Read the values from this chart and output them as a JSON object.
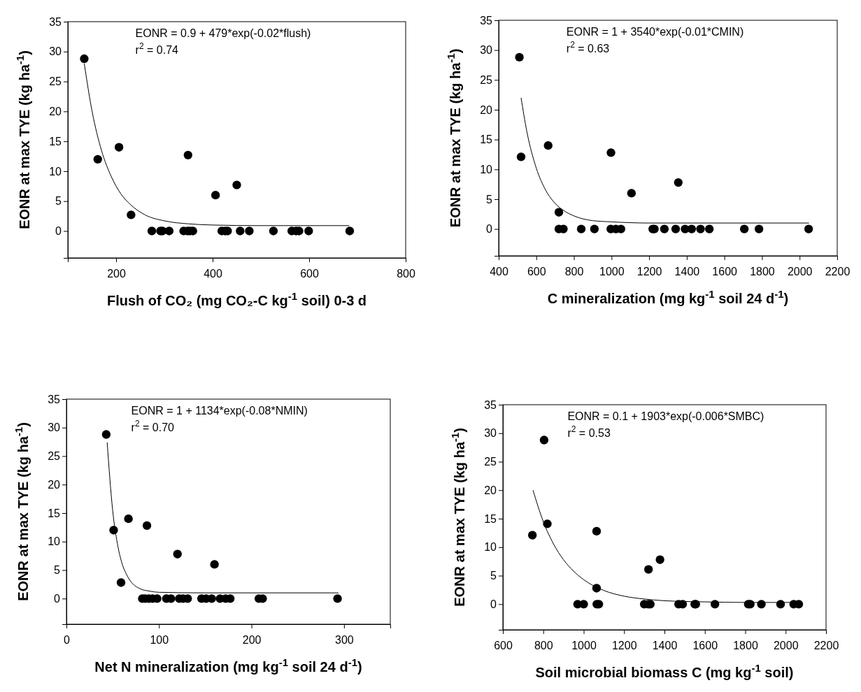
{
  "chart_data": [
    {
      "type": "scatter",
      "xlabel": "Flush of CO₂ (mg CO₂-C kg$^{-1}$ soil) 0-3 d",
      "ylabel": "EONR at max TYE (kg ha$^{-1}$)",
      "annotations": [
        "EONR = 0.9 + 479*exp(-0.02*flush)",
        "r$^{2}$ = 0.74"
      ],
      "xlim": [
        100,
        800
      ],
      "xticks": [
        200,
        400,
        600,
        800
      ],
      "ylim": [
        -4.5,
        35
      ],
      "yticks": [
        0,
        5,
        10,
        15,
        20,
        25,
        30,
        35
      ],
      "grid": false,
      "series": [
        {
          "marker": "circle",
          "color": "#000000",
          "x": [
            134,
            162,
            206,
            231,
            349,
            406,
            450,
            274,
            292,
            296,
            310,
            340,
            348,
            353,
            359,
            419,
            426,
            431,
            457,
            476,
            526,
            564,
            573,
            579,
            599,
            684
          ],
          "values": [
            28.8,
            12,
            14,
            2.7,
            12.7,
            6,
            7.7,
            0,
            0,
            0,
            0,
            0,
            0,
            0,
            0,
            0,
            0,
            0,
            0,
            0,
            0,
            0,
            0,
            0,
            0,
            0
          ]
        },
        {
          "type": "line",
          "color": "#000000",
          "x": [
            134,
            150,
            170,
            190,
            210,
            230,
            260,
            300,
            350,
            400,
            500,
            683
          ],
          "values": [
            28,
            20.1,
            13.4,
            9.1,
            6.2,
            4.4,
            2.7,
            1.7,
            1.2,
            1,
            0.9,
            0.9
          ]
        }
      ]
    },
    {
      "type": "scatter",
      "xlabel": "C mineralization (mg kg$^{-1}$ soil 24 d$^{-1}$)",
      "ylabel": "EONR at max TYE (kg ha$^{-1}$)",
      "annotations": [
        "EONR = 1 + 3540*exp(-0.01*CMIN)",
        "r$^{2}$ = 0.63"
      ],
      "xlim": [
        400,
        2200
      ],
      "xticks": [
        400,
        600,
        800,
        1000,
        1200,
        1400,
        1600,
        1800,
        2000,
        2200
      ],
      "ylim": [
        -4.5,
        35
      ],
      "yticks": [
        0,
        5,
        10,
        15,
        20,
        25,
        30,
        35
      ],
      "grid": false,
      "series": [
        {
          "marker": "circle",
          "color": "#000000",
          "x": [
            510,
            519,
            663,
            720,
            997,
            1106,
            1355,
            720,
            744,
            839,
            909,
            996,
            1023,
            1050,
            1219,
            1228,
            1281,
            1341,
            1391,
            1426,
            1473,
            1520,
            1706,
            1784,
            2048
          ],
          "values": [
            28.8,
            12.1,
            14,
            2.8,
            12.8,
            6,
            7.8,
            0,
            0,
            0,
            0,
            0,
            0,
            0,
            0,
            0,
            0,
            0,
            0,
            0,
            0,
            0,
            0,
            0,
            0
          ]
        },
        {
          "type": "line",
          "color": "#000000",
          "x": [
            519,
            550,
            600,
            650,
            700,
            750,
            800,
            900,
            1000,
            1200,
            1500,
            2050
          ],
          "values": [
            22,
            16.3,
            10.2,
            6.5,
            4.3,
            3,
            2.2,
            1.4,
            1.2,
            1,
            1,
            1
          ]
        }
      ]
    },
    {
      "type": "scatter",
      "xlabel": "Net N mineralization (mg kg$^{-1}$ soil 24 d$^{-1}$)",
      "ylabel": "EONR at max TYE (kg ha$^{-1}$)",
      "annotations": [
        "EONR = 1 + 1134*exp(-0.08*NMIN)",
        "r$^{2}$ = 0.70"
      ],
      "xlim": [
        0,
        350
      ],
      "xticks": [
        0,
        100,
        200,
        300
      ],
      "ylim": [
        -4.5,
        35
      ],
      "yticks": [
        0,
        5,
        10,
        15,
        20,
        25,
        30,
        35
      ],
      "grid": false,
      "series": [
        {
          "marker": "circle",
          "color": "#000000",
          "x": [
            43,
            51,
            67,
            87,
            120,
            160,
            59,
            82,
            85,
            89,
            93,
            98,
            108,
            113,
            122,
            126,
            131,
            146,
            151,
            157,
            166,
            172,
            177,
            208,
            212,
            293
          ],
          "values": [
            28.8,
            12,
            14,
            12.8,
            7.8,
            6,
            2.8,
            0,
            0,
            0,
            0,
            0,
            0,
            0,
            0,
            0,
            0,
            0,
            0,
            0,
            0,
            0,
            0,
            0,
            0,
            0
          ]
        },
        {
          "type": "line",
          "color": "#000000",
          "x": [
            44,
            50,
            55,
            60,
            65,
            70,
            80,
            90,
            100,
            150,
            294
          ],
          "values": [
            27.4,
            15.4,
            9.7,
            6.2,
            4.2,
            2.9,
            1.7,
            1.3,
            1.1,
            1,
            1
          ]
        }
      ]
    },
    {
      "type": "scatter",
      "xlabel": "Soil microbial biomass C (mg kg$^{-1}$ soil)",
      "ylabel": "EONR at max TYE (kg ha$^{-1}$)",
      "annotations": [
        "EONR = 0.1 + 1903*exp(-0.006*SMBC)",
        "r$^{2}$ = 0.53"
      ],
      "xlim": [
        600,
        2200
      ],
      "xticks": [
        600,
        800,
        1000,
        1200,
        1400,
        1600,
        1800,
        2000,
        2200
      ],
      "ylim": [
        -4.5,
        35
      ],
      "yticks": [
        0,
        5,
        10,
        15,
        20,
        25,
        30,
        35
      ],
      "grid": false,
      "series": [
        {
          "marker": "circle",
          "color": "#000000",
          "x": [
            804,
            746,
            820,
            1064,
            1321,
            1378,
            1064,
            970,
            1000,
            1065,
            1075,
            1300,
            1320,
            1330,
            1470,
            1490,
            1550,
            1555,
            1650,
            1815,
            1825,
            1880,
            1975,
            2040,
            2065
          ],
          "values": [
            28.8,
            12.1,
            14.1,
            12.8,
            6.1,
            7.8,
            2.8,
            0,
            0,
            0,
            0,
            0,
            0,
            0,
            0,
            0,
            0,
            0,
            0,
            0,
            0,
            0,
            0,
            0,
            0
          ]
        },
        {
          "type": "line",
          "color": "#000000",
          "x": [
            749,
            800,
            850,
            900,
            950,
            1000,
            1100,
            1200,
            1300,
            1400,
            1600,
            1800,
            2065
          ],
          "values": [
            20,
            14.5,
            10.6,
            7.8,
            5.8,
            4.3,
            2.4,
            1.4,
            0.9,
            0.6,
            0.4,
            0.3,
            0.3
          ]
        }
      ]
    }
  ]
}
